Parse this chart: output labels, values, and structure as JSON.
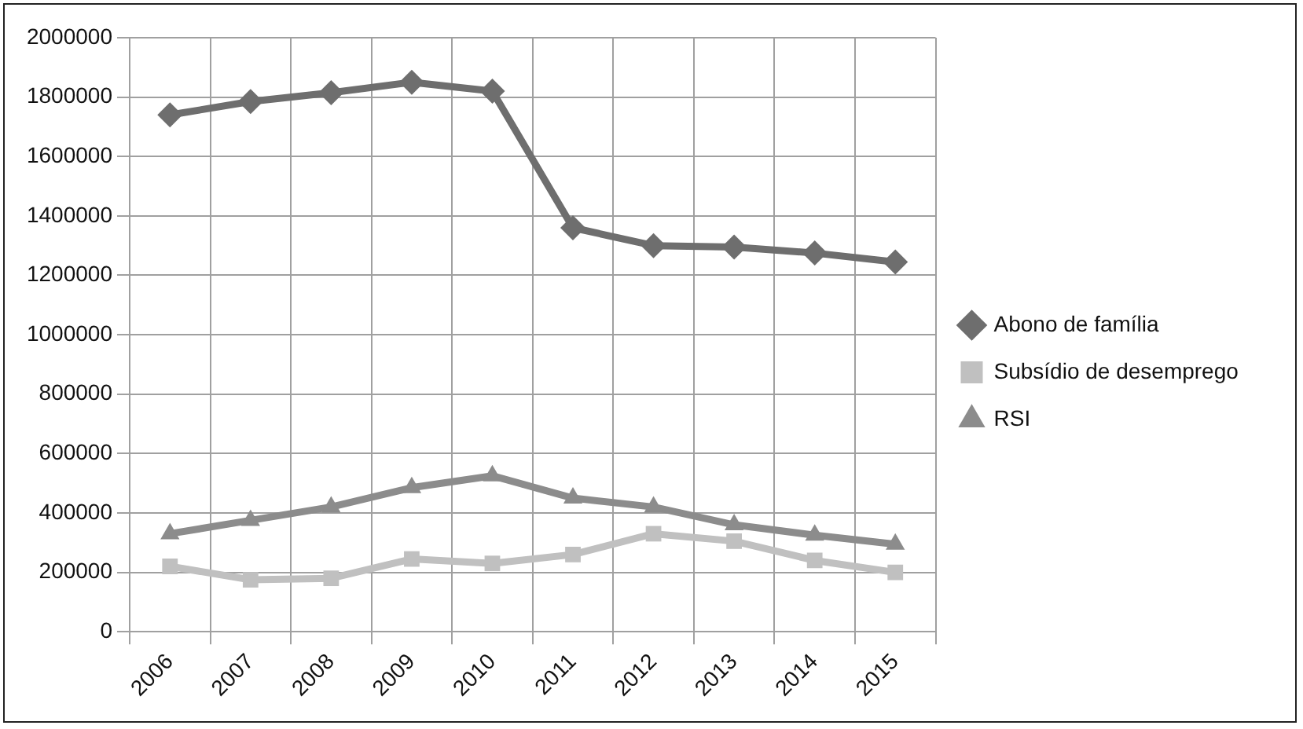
{
  "chart_data": {
    "type": "line",
    "categories": [
      "2006",
      "2007",
      "2008",
      "2009",
      "2010",
      "2011",
      "2012",
      "2013",
      "2014",
      "2015"
    ],
    "series": [
      {
        "name": "Abono de família",
        "color": "#6e6e6e",
        "marker": "diamond",
        "values": [
          1740000,
          1785000,
          1815000,
          1850000,
          1820000,
          1360000,
          1300000,
          1295000,
          1275000,
          1245000
        ]
      },
      {
        "name": "Subsídio de desemprego",
        "color": "#c0c0c0",
        "marker": "square",
        "values": [
          220000,
          175000,
          180000,
          245000,
          230000,
          260000,
          330000,
          305000,
          240000,
          200000
        ]
      },
      {
        "name": "RSI",
        "color": "#8c8c8c",
        "marker": "triangle",
        "values": [
          330000,
          375000,
          420000,
          485000,
          525000,
          450000,
          420000,
          360000,
          325000,
          295000
        ]
      }
    ],
    "ylim": [
      0,
      2000000
    ],
    "yticks": [
      0,
      200000,
      400000,
      600000,
      800000,
      1000000,
      1200000,
      1400000,
      1600000,
      1800000,
      2000000
    ],
    "grid": true,
    "legend": "right",
    "line_style": "solid"
  }
}
